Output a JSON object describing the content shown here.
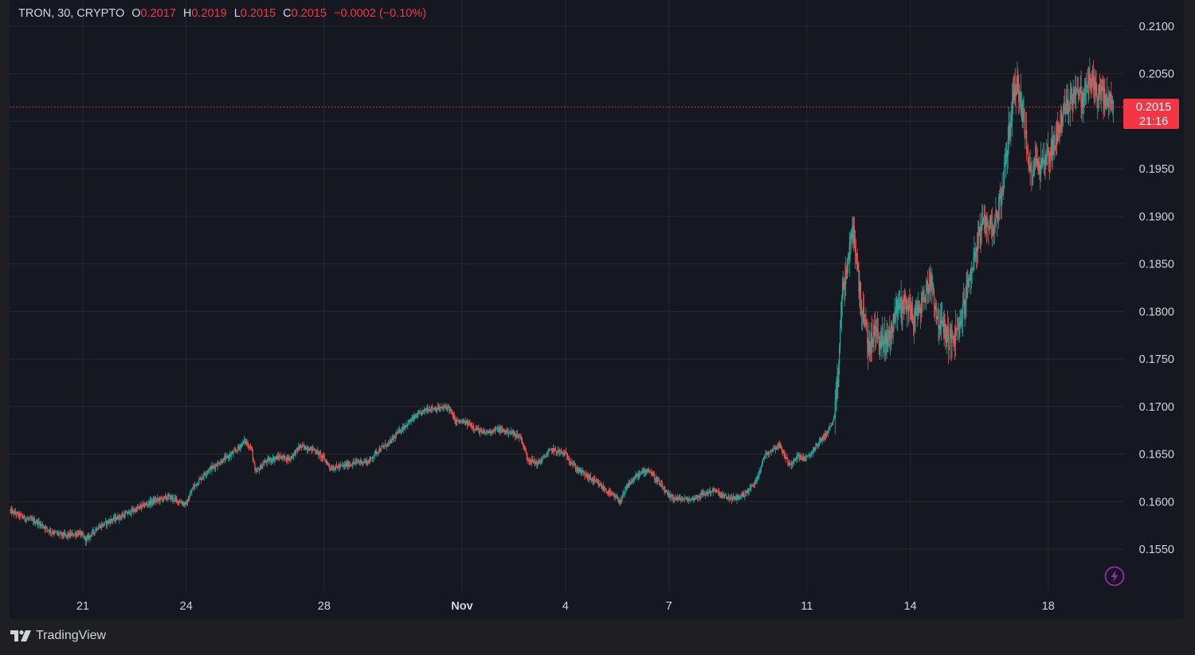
{
  "legend": {
    "symbol": "TRON, 30, CRYPTO",
    "open_label": "O",
    "open": "0.2017",
    "high_label": "H",
    "high": "0.2019",
    "low_label": "L",
    "low": "0.2015",
    "close_label": "C",
    "close": "0.2015",
    "change": "−0.0002 (−0.10%)"
  },
  "price_tag": {
    "price": "0.2015",
    "countdown": "21:16",
    "color": "#f23645"
  },
  "brand": {
    "name": "TradingView"
  },
  "icons": {
    "logo": "tradingview-logo-icon",
    "bolt": "lightning-icon"
  },
  "colors": {
    "up": "#26a69a",
    "down": "#ef5350",
    "background": "#151821",
    "grid": "#262a35",
    "text": "#d1d4dc",
    "accent": "#9c27b0"
  },
  "chart_data": {
    "type": "candlestick",
    "title": "TRON, 30, CRYPTO",
    "ylim": [
      0.151,
      0.2125
    ],
    "y_ticks": [
      "0.2100",
      "0.2050",
      "0.2000",
      "0.1950",
      "0.1900",
      "0.1850",
      "0.1800",
      "0.1750",
      "0.1700",
      "0.1650",
      "0.1600",
      "0.1550"
    ],
    "x_ticks": [
      {
        "label": "21",
        "day": 21
      },
      {
        "label": "24",
        "day": 24
      },
      {
        "label": "28",
        "day": 28
      },
      {
        "label": "Nov",
        "day": 32
      },
      {
        "label": "4",
        "day": 35
      },
      {
        "label": "7",
        "day": 38
      },
      {
        "label": "11",
        "day": 42
      },
      {
        "label": "14",
        "day": 45
      },
      {
        "label": "18",
        "day": 49
      }
    ],
    "x_range_days": [
      18.9,
      50.9
    ],
    "last_price": 0.2015,
    "series": [
      {
        "values": [
          [
            18.9,
            0.159
          ],
          [
            19.3,
            0.1583
          ],
          [
            19.7,
            0.1578
          ],
          [
            20.1,
            0.1568
          ],
          [
            20.5,
            0.1564
          ],
          [
            20.9,
            0.1567
          ],
          [
            21.1,
            0.156
          ],
          [
            21.4,
            0.1572
          ],
          [
            21.8,
            0.158
          ],
          [
            22.2,
            0.1586
          ],
          [
            22.6,
            0.1593
          ],
          [
            23.0,
            0.16
          ],
          [
            23.5,
            0.1605
          ],
          [
            24.0,
            0.1597
          ],
          [
            24.2,
            0.1615
          ],
          [
            24.6,
            0.1632
          ],
          [
            25.0,
            0.1642
          ],
          [
            25.4,
            0.1652
          ],
          [
            25.7,
            0.1664
          ],
          [
            25.9,
            0.1655
          ],
          [
            26.0,
            0.163
          ],
          [
            26.3,
            0.1642
          ],
          [
            26.7,
            0.1647
          ],
          [
            27.0,
            0.1645
          ],
          [
            27.3,
            0.1658
          ],
          [
            27.7,
            0.1655
          ],
          [
            28.0,
            0.1645
          ],
          [
            28.2,
            0.1635
          ],
          [
            28.6,
            0.1638
          ],
          [
            29.0,
            0.1642
          ],
          [
            29.3,
            0.1642
          ],
          [
            29.5,
            0.1652
          ],
          [
            29.9,
            0.1662
          ],
          [
            30.2,
            0.1675
          ],
          [
            30.6,
            0.1688
          ],
          [
            31.0,
            0.1698
          ],
          [
            31.4,
            0.1698
          ],
          [
            31.6,
            0.17
          ],
          [
            31.8,
            0.1685
          ],
          [
            32.2,
            0.1682
          ],
          [
            32.6,
            0.1672
          ],
          [
            33.0,
            0.1676
          ],
          [
            33.4,
            0.1673
          ],
          [
            33.7,
            0.1668
          ],
          [
            33.9,
            0.1645
          ],
          [
            34.2,
            0.164
          ],
          [
            34.6,
            0.1655
          ],
          [
            35.0,
            0.165
          ],
          [
            35.3,
            0.1635
          ],
          [
            35.7,
            0.1625
          ],
          [
            36.0,
            0.1617
          ],
          [
            36.3,
            0.1608
          ],
          [
            36.6,
            0.16
          ],
          [
            36.8,
            0.1617
          ],
          [
            37.1,
            0.1628
          ],
          [
            37.4,
            0.1634
          ],
          [
            37.7,
            0.162
          ],
          [
            38.0,
            0.1605
          ],
          [
            38.3,
            0.1603
          ],
          [
            38.6,
            0.1602
          ],
          [
            39.0,
            0.1608
          ],
          [
            39.3,
            0.1612
          ],
          [
            39.6,
            0.1605
          ],
          [
            39.9,
            0.1603
          ],
          [
            40.2,
            0.1608
          ],
          [
            40.5,
            0.162
          ],
          [
            40.8,
            0.165
          ],
          [
            41.2,
            0.166
          ],
          [
            41.5,
            0.1638
          ],
          [
            41.7,
            0.1648
          ],
          [
            42.0,
            0.1645
          ],
          [
            42.3,
            0.166
          ],
          [
            42.6,
            0.1673
          ],
          [
            42.8,
            0.1688
          ],
          [
            42.9,
            0.1725
          ],
          [
            43.0,
            0.181
          ],
          [
            43.2,
            0.1855
          ],
          [
            43.35,
            0.1888
          ],
          [
            43.45,
            0.185
          ],
          [
            43.6,
            0.18
          ],
          [
            43.8,
            0.1762
          ],
          [
            44.0,
            0.178
          ],
          [
            44.2,
            0.1765
          ],
          [
            44.4,
            0.1775
          ],
          [
            44.6,
            0.1805
          ],
          [
            44.9,
            0.181
          ],
          [
            45.1,
            0.179
          ],
          [
            45.4,
            0.1815
          ],
          [
            45.6,
            0.1835
          ],
          [
            45.8,
            0.179
          ],
          [
            46.0,
            0.178
          ],
          [
            46.2,
            0.1768
          ],
          [
            46.4,
            0.178
          ],
          [
            46.6,
            0.1815
          ],
          [
            46.8,
            0.185
          ],
          [
            47.0,
            0.188
          ],
          [
            47.2,
            0.1895
          ],
          [
            47.4,
            0.189
          ],
          [
            47.6,
            0.1912
          ],
          [
            47.8,
            0.197
          ],
          [
            48.0,
            0.203
          ],
          [
            48.1,
            0.204
          ],
          [
            48.3,
            0.2
          ],
          [
            48.45,
            0.1945
          ],
          [
            48.6,
            0.1958
          ],
          [
            48.8,
            0.1955
          ],
          [
            49.0,
            0.1965
          ],
          [
            49.2,
            0.198
          ],
          [
            49.4,
            0.2005
          ],
          [
            49.6,
            0.202
          ],
          [
            49.8,
            0.2035
          ],
          [
            50.0,
            0.2022
          ],
          [
            50.2,
            0.2045
          ],
          [
            50.4,
            0.2032
          ],
          [
            50.6,
            0.2025
          ],
          [
            50.8,
            0.2018
          ],
          [
            50.9,
            0.2015
          ]
        ]
      }
    ]
  }
}
